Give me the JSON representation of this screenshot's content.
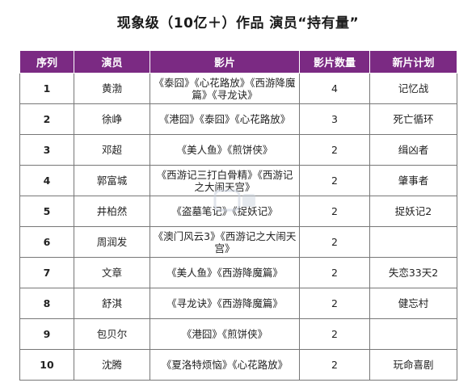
{
  "title": "现象级（10亿＋）作品   演员“持有量”",
  "headers": [
    "序列",
    "演员",
    "影片",
    "影片数量",
    "新片计划"
  ],
  "rows": [
    {
      "rank": "1",
      "actor": "黄渤",
      "films": "《泰囧》《心花路放》《西游降魔篇》《寻龙诀》",
      "count": "4",
      "plan": "记忆战"
    },
    {
      "rank": "2",
      "actor": "徐峥",
      "films": "《港囧》《泰囧》《心花路放》",
      "count": "3",
      "plan": "死亡循环"
    },
    {
      "rank": "3",
      "actor": "邓超",
      "films": "《美人鱼》《煎饼侠》",
      "count": "2",
      "plan": "缉凶者"
    },
    {
      "rank": "4",
      "actor": "郭富城",
      "films": "《西游记三打白骨精》《西游记之大闹天宫》",
      "count": "2",
      "plan": "肇事者"
    },
    {
      "rank": "5",
      "actor": "井柏然",
      "films": "《盗墓笔记》《捉妖记》",
      "count": "2",
      "plan": "捉妖记2"
    },
    {
      "rank": "6",
      "actor": "周润发",
      "films": "《澳门风云3》《西游记之大闹天宫》",
      "count": "2",
      "plan": ""
    },
    {
      "rank": "7",
      "actor": "文章",
      "films": "《美人鱼》《西游降魔篇》",
      "count": "2",
      "plan": "失恋33天2"
    },
    {
      "rank": "8",
      "actor": "舒淇",
      "films": "《寻龙诀》《西游降魔篇》",
      "count": "2",
      "plan": "健忘村"
    },
    {
      "rank": "9",
      "actor": "包贝尔",
      "films": "《港囧》《煎饼侠》",
      "count": "2",
      "plan": ""
    },
    {
      "rank": "10",
      "actor": "沈腾",
      "films": "《夏洛特烦恼》《心花路放》",
      "count": "2",
      "plan": "玩命喜剧"
    }
  ],
  "colors": {
    "header_bg": "#7b2a83",
    "header_text": "#ffffff",
    "border": "#777777"
  }
}
